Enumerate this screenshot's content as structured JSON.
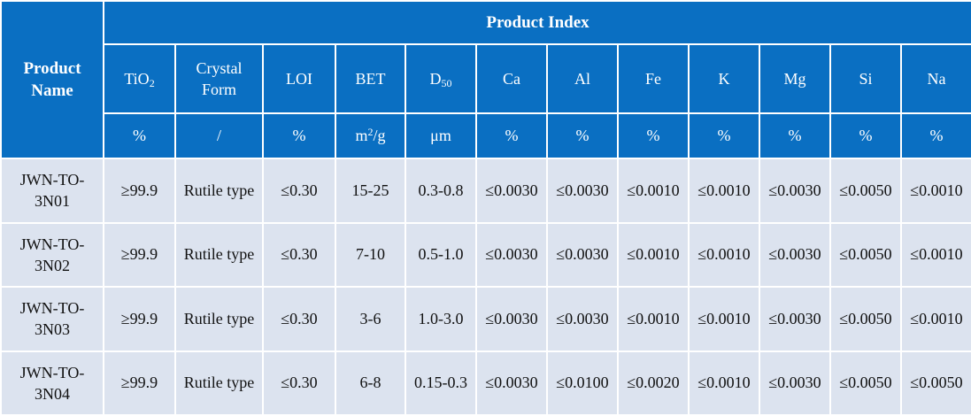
{
  "table": {
    "name_header": "Product Name",
    "index_header": "Product Index",
    "columns": [
      {
        "label": "TiO",
        "sub": "2",
        "unit": "%"
      },
      {
        "label": "Crystal Form",
        "unit": "/"
      },
      {
        "label": "LOI",
        "unit": "%"
      },
      {
        "label": "BET",
        "unit_base": "m",
        "unit_sup": "2",
        "unit_tail": "/g"
      },
      {
        "label": "D",
        "sub": "50",
        "unit": "μm"
      },
      {
        "label": "Ca",
        "unit": "%"
      },
      {
        "label": "Al",
        "unit": "%"
      },
      {
        "label": "Fe",
        "unit": "%"
      },
      {
        "label": "K",
        "unit": "%"
      },
      {
        "label": "Mg",
        "unit": "%"
      },
      {
        "label": "Si",
        "unit": "%"
      },
      {
        "label": "Na",
        "unit": "%"
      }
    ],
    "rows": [
      {
        "name": "JWN-TO-3N01",
        "values": [
          "≥99.9",
          "Rutile type",
          "≤0.30",
          "15-25",
          "0.3-0.8",
          "≤0.0030",
          "≤0.0030",
          "≤0.0010",
          "≤0.0010",
          "≤0.0030",
          "≤0.0050",
          "≤0.0010"
        ]
      },
      {
        "name": "JWN-TO-3N02",
        "values": [
          "≥99.9",
          "Rutile type",
          "≤0.30",
          "7-10",
          "0.5-1.0",
          "≤0.0030",
          "≤0.0030",
          "≤0.0010",
          "≤0.0010",
          "≤0.0030",
          "≤0.0050",
          "≤0.0010"
        ]
      },
      {
        "name": "JWN-TO-3N03",
        "values": [
          "≥99.9",
          "Rutile type",
          "≤0.30",
          "3-6",
          "1.0-3.0",
          "≤0.0030",
          "≤0.0030",
          "≤0.0010",
          "≤0.0010",
          "≤0.0030",
          "≤0.0050",
          "≤0.0010"
        ]
      },
      {
        "name": "JWN-TO-3N04",
        "values": [
          "≥99.9",
          "Rutile type",
          "≤0.30",
          "6-8",
          "0.15-0.3",
          "≤0.0030",
          "≤0.0100",
          "≤0.0020",
          "≤0.0010",
          "≤0.0030",
          "≤0.0050",
          "≤0.0050"
        ]
      }
    ]
  },
  "colors": {
    "header_bg": "#0a6fc2",
    "header_text": "#ffffff",
    "body_bg": "#dce3ef",
    "border": "#ffffff"
  }
}
